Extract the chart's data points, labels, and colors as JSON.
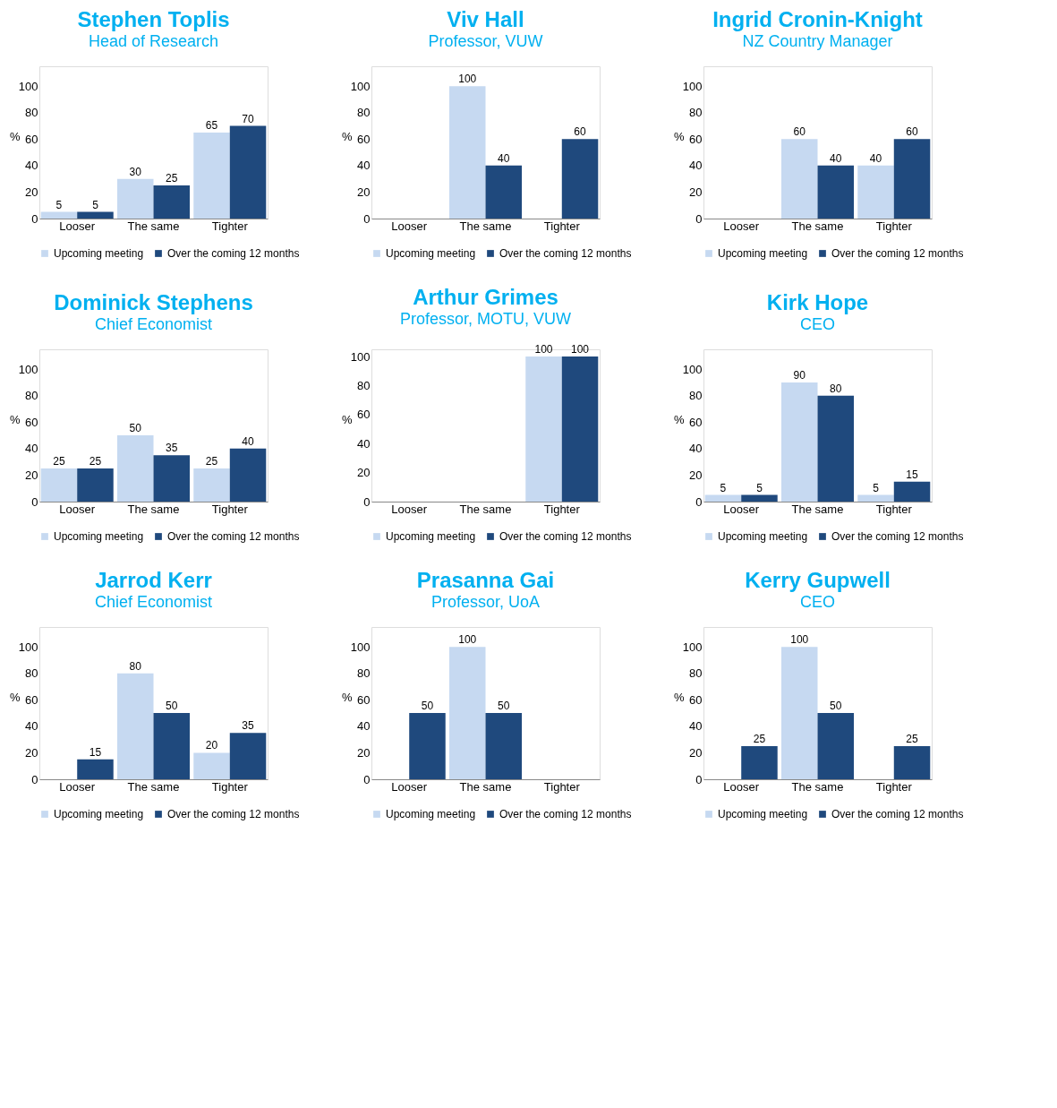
{
  "chart_data": [
    {
      "type": "bar",
      "title": "Stephen Toplis",
      "subtitle": "Head of Research",
      "categories": [
        "Looser",
        "The same",
        "Tighter"
      ],
      "ylabel": "%",
      "ylim": [
        0,
        115
      ],
      "yticks": [
        0,
        20,
        40,
        60,
        80,
        100
      ],
      "data_labels": true,
      "legend": "bottom",
      "grid": false,
      "series": [
        {
          "name": "Upcoming meeting",
          "color": "#c6d9f1",
          "values": [
            5,
            30,
            65
          ]
        },
        {
          "name": "Over the coming 12 months",
          "color": "#1f497d",
          "values": [
            5,
            25,
            70
          ]
        }
      ]
    },
    {
      "type": "bar",
      "title": "Viv Hall",
      "subtitle": "Professor, VUW",
      "categories": [
        "Looser",
        "The same",
        "Tighter"
      ],
      "ylabel": "%",
      "ylim": [
        0,
        115
      ],
      "yticks": [
        0,
        20,
        40,
        60,
        80,
        100
      ],
      "data_labels": true,
      "legend": "bottom",
      "grid": false,
      "series": [
        {
          "name": "Upcoming meeting",
          "color": "#c6d9f1",
          "values": [
            null,
            100,
            null
          ]
        },
        {
          "name": "Over the coming 12 months",
          "color": "#1f497d",
          "values": [
            null,
            40,
            60
          ]
        }
      ]
    },
    {
      "type": "bar",
      "title": "Ingrid Cronin-Knight",
      "subtitle": "NZ Country Manager",
      "categories": [
        "Looser",
        "The same",
        "Tighter"
      ],
      "ylabel": "%",
      "ylim": [
        0,
        115
      ],
      "yticks": [
        0,
        20,
        40,
        60,
        80,
        100
      ],
      "data_labels": true,
      "legend": "bottom",
      "grid": false,
      "series": [
        {
          "name": "Upcoming meeting",
          "color": "#c6d9f1",
          "values": [
            null,
            60,
            40
          ]
        },
        {
          "name": "Over the coming 12 months",
          "color": "#1f497d",
          "values": [
            null,
            40,
            60
          ]
        }
      ]
    },
    {
      "type": "bar",
      "title": "Dominick Stephens",
      "subtitle": "Chief Economist",
      "categories": [
        "Looser",
        "The same",
        "Tighter"
      ],
      "ylabel": "%",
      "ylim": [
        0,
        115
      ],
      "yticks": [
        0,
        20,
        40,
        60,
        80,
        100
      ],
      "data_labels": true,
      "legend": "bottom",
      "grid": false,
      "series": [
        {
          "name": "Upcoming meeting",
          "color": "#c6d9f1",
          "values": [
            25,
            50,
            25
          ]
        },
        {
          "name": "Over the coming 12 months",
          "color": "#1f497d",
          "values": [
            25,
            35,
            40
          ]
        }
      ]
    },
    {
      "type": "bar",
      "title": "Arthur Grimes",
      "subtitle": "Professor, MOTU, VUW",
      "categories": [
        "Looser",
        "The same",
        "Tighter"
      ],
      "ylabel": "%",
      "ylim": [
        0,
        105
      ],
      "yticks": [
        0,
        20,
        40,
        60,
        80,
        100
      ],
      "data_labels": true,
      "legend": "bottom",
      "grid": false,
      "series": [
        {
          "name": "Upcoming meeting",
          "color": "#c6d9f1",
          "values": [
            null,
            null,
            100
          ]
        },
        {
          "name": "Over the coming 12 months",
          "color": "#1f497d",
          "values": [
            null,
            null,
            100
          ]
        }
      ]
    },
    {
      "type": "bar",
      "title": "Kirk Hope",
      "subtitle": "CEO",
      "categories": [
        "Looser",
        "The same",
        "Tighter"
      ],
      "ylabel": "%",
      "ylim": [
        0,
        115
      ],
      "yticks": [
        0,
        20,
        40,
        60,
        80,
        100
      ],
      "data_labels": true,
      "legend": "bottom",
      "grid": false,
      "series": [
        {
          "name": "Upcoming meeting",
          "color": "#c6d9f1",
          "values": [
            5,
            90,
            5
          ]
        },
        {
          "name": "Over the coming 12 months",
          "color": "#1f497d",
          "values": [
            5,
            80,
            15
          ]
        }
      ]
    },
    {
      "type": "bar",
      "title": "Jarrod Kerr",
      "subtitle": "Chief Economist",
      "categories": [
        "Looser",
        "The same",
        "Tighter"
      ],
      "ylabel": "%",
      "ylim": [
        0,
        115
      ],
      "yticks": [
        0,
        20,
        40,
        60,
        80,
        100
      ],
      "data_labels": true,
      "legend": "bottom",
      "grid": false,
      "series": [
        {
          "name": "Upcoming meeting",
          "color": "#c6d9f1",
          "values": [
            null,
            80,
            20
          ]
        },
        {
          "name": "Over the coming 12 months",
          "color": "#1f497d",
          "values": [
            15,
            50,
            35
          ]
        }
      ]
    },
    {
      "type": "bar",
      "title": "Prasanna Gai",
      "subtitle": "Professor, UoA",
      "categories": [
        "Looser",
        "The same",
        "Tighter"
      ],
      "ylabel": "%",
      "ylim": [
        0,
        115
      ],
      "yticks": [
        0,
        20,
        40,
        60,
        80,
        100
      ],
      "data_labels": true,
      "legend": "bottom",
      "grid": false,
      "series": [
        {
          "name": "Upcoming meeting",
          "color": "#c6d9f1",
          "values": [
            null,
            100,
            null
          ]
        },
        {
          "name": "Over the coming 12 months",
          "color": "#1f497d",
          "values": [
            50,
            50,
            null
          ]
        }
      ]
    },
    {
      "type": "bar",
      "title": "Kerry Gupwell",
      "subtitle": "CEO",
      "categories": [
        "Looser",
        "The same",
        "Tighter"
      ],
      "ylabel": "%",
      "ylim": [
        0,
        115
      ],
      "yticks": [
        0,
        20,
        40,
        60,
        80,
        100
      ],
      "data_labels": true,
      "legend": "bottom",
      "grid": false,
      "series": [
        {
          "name": "Upcoming meeting",
          "color": "#c6d9f1",
          "values": [
            null,
            100,
            null
          ]
        },
        {
          "name": "Over the coming 12 months",
          "color": "#1f497d",
          "values": [
            25,
            50,
            25
          ]
        }
      ]
    }
  ]
}
